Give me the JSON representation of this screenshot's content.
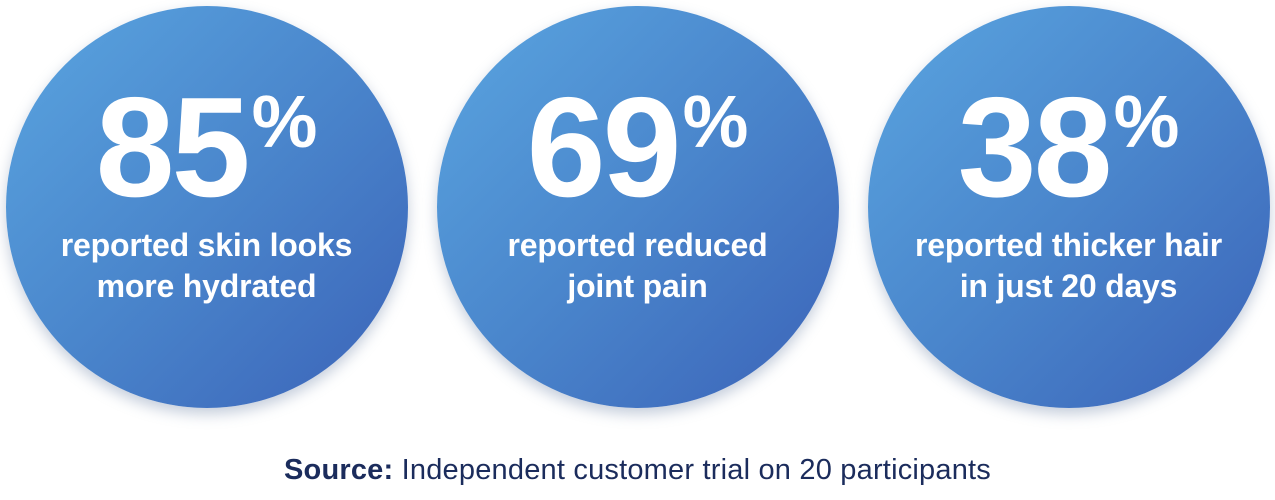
{
  "chart_data": {
    "type": "table",
    "title": "",
    "categories": [
      "reported skin looks more hydrated",
      "reported reduced joint pain",
      "reported thicker hair in just 20 days"
    ],
    "values": [
      85,
      69,
      38
    ],
    "unit": "%",
    "annotations": [
      "Source: Independent customer trial on 20 participants"
    ],
    "legend": false,
    "grid": false
  },
  "stats": [
    {
      "value": "85",
      "unit": "%",
      "caption_lines": [
        "reported skin looks",
        "more hydrated"
      ]
    },
    {
      "value": "69",
      "unit": "%",
      "caption_lines": [
        "reported reduced",
        "joint pain"
      ]
    },
    {
      "value": "38",
      "unit": "%",
      "caption_lines": [
        "reported thicker hair",
        "in just 20 days"
      ]
    }
  ],
  "source": {
    "label": "Source:",
    "text": "Independent customer trial on 20 participants"
  },
  "colors": {
    "circle_gradient_start": "#5aa5e0",
    "circle_gradient_end": "#3b63b8",
    "stat_text": "#ffffff",
    "source_text": "#1b2c5c",
    "background": "#ffffff"
  }
}
